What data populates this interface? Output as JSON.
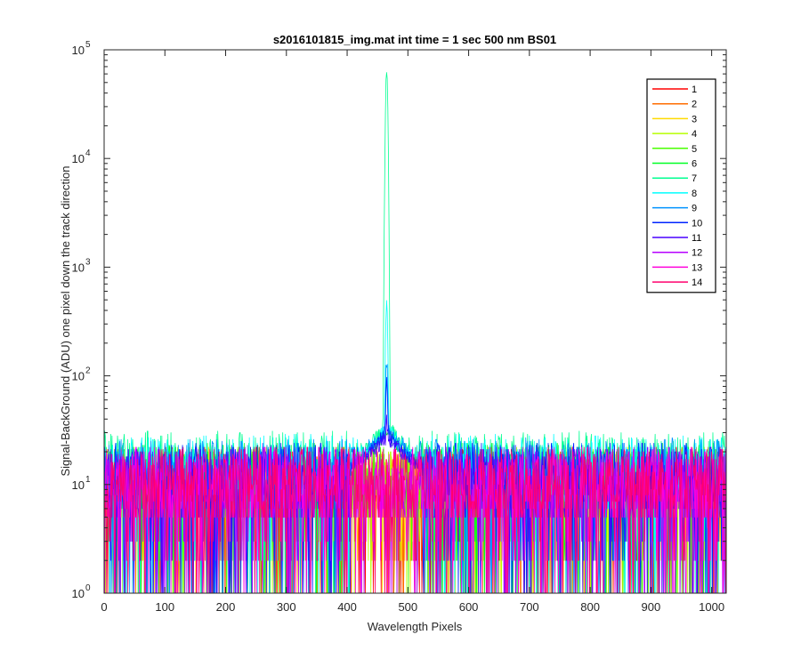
{
  "chart_data": {
    "type": "line",
    "title": "s2016101815_img.mat int time = 1 sec  500 nm BS01",
    "xlabel": "Wavelength Pixels",
    "ylabel": "Signal-BackGround (ADU) one pixel down the track direction",
    "x_range": [
      0,
      1024
    ],
    "ylim": [
      1,
      100000
    ],
    "y_scale": "log",
    "x_ticks": [
      0,
      100,
      200,
      300,
      400,
      500,
      600,
      700,
      800,
      900,
      1000
    ],
    "x_tick_labels": [
      "0",
      "100",
      "200",
      "300",
      "400",
      "500",
      "600",
      "700",
      "800",
      "900",
      "1000"
    ],
    "y_ticks": [
      1,
      10,
      100,
      1000,
      10000,
      100000
    ],
    "y_tick_labels": [
      {
        "base": "10",
        "exp": "0"
      },
      {
        "base": "10",
        "exp": "1"
      },
      {
        "base": "10",
        "exp": "2"
      },
      {
        "base": "10",
        "exp": "3"
      },
      {
        "base": "10",
        "exp": "4"
      },
      {
        "base": "10",
        "exp": "5"
      }
    ],
    "grid": false,
    "legend_position": "top-right",
    "peak_center": 465,
    "series": [
      {
        "name": "1",
        "color": "#ff0000",
        "noise_mean": 10,
        "peak": 1
      },
      {
        "name": "2",
        "color": "#ff6d00",
        "noise_mean": 10,
        "peak": 1
      },
      {
        "name": "3",
        "color": "#ffda00",
        "noise_mean": 10,
        "peak": 1
      },
      {
        "name": "4",
        "color": "#b6ff00",
        "noise_mean": 10,
        "peak": 1
      },
      {
        "name": "5",
        "color": "#49ff00",
        "noise_mean": 10,
        "peak": 1
      },
      {
        "name": "6",
        "color": "#00ff24",
        "noise_mean": 11,
        "peak": 30
      },
      {
        "name": "7",
        "color": "#00ff92",
        "noise_mean": 14,
        "peak": 60000
      },
      {
        "name": "8",
        "color": "#00ffff",
        "noise_mean": 13,
        "peak": 480
      },
      {
        "name": "9",
        "color": "#0092ff",
        "noise_mean": 12,
        "peak": 140
      },
      {
        "name": "10",
        "color": "#0024ff",
        "noise_mean": 11,
        "peak": 90
      },
      {
        "name": "11",
        "color": "#4900ff",
        "noise_mean": 10,
        "peak": 40
      },
      {
        "name": "12",
        "color": "#b600ff",
        "noise_mean": 10,
        "peak": 1
      },
      {
        "name": "13",
        "color": "#ff00db",
        "noise_mean": 10,
        "peak": 1
      },
      {
        "name": "14",
        "color": "#ff006d",
        "noise_mean": 10,
        "peak": 1
      }
    ]
  }
}
